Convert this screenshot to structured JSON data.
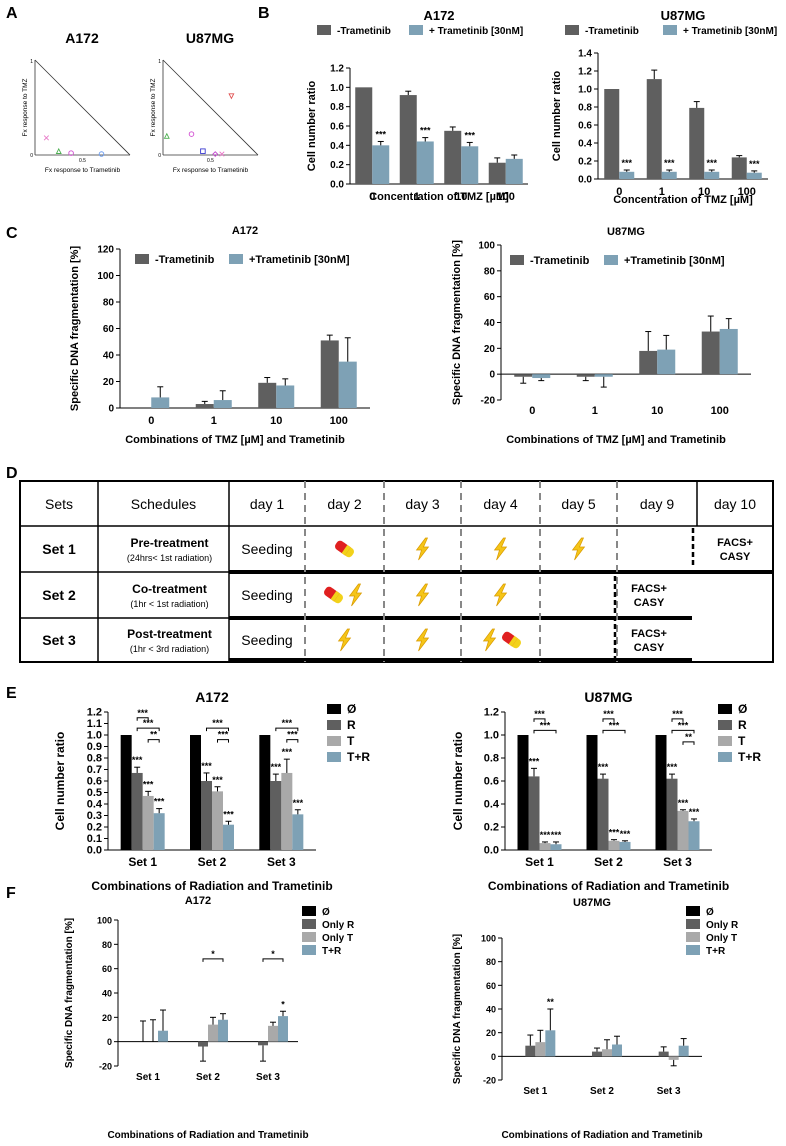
{
  "panel_letters": {
    "a": "A",
    "b": "B",
    "c": "C",
    "d": "D",
    "e": "E",
    "f": "F"
  },
  "colors": {
    "dark": "#5f5f5f",
    "blue": "#7ea1b5",
    "black": "#000000",
    "light": "#a9a9a9",
    "frame": "#000000"
  },
  "panel_a": {
    "plots": [
      {
        "title": "A172",
        "ylabel": "Fx response to TMZ",
        "xlabel": "Fx response to Trametinib",
        "tick_one": "1",
        "tick_zero": "0",
        "tick_half": "0.5",
        "markers": [
          {
            "shape": "x",
            "color": "#e879c8",
            "fx": 0.12,
            "fy": 0.18
          },
          {
            "shape": "tri",
            "color": "#4caf50",
            "fx": 0.25,
            "fy": 0.04
          },
          {
            "shape": "circ",
            "color": "#d14cd1",
            "fx": 0.38,
            "fy": 0.02
          },
          {
            "shape": "circ",
            "color": "#6a9cf0",
            "fx": 0.7,
            "fy": 0.01
          }
        ]
      },
      {
        "title": "U87MG",
        "ylabel": "Fx response to TMZ",
        "xlabel": "Fx response to Trametinib",
        "tick_one": "1",
        "tick_zero": "0",
        "tick_half": "0.5",
        "markers": [
          {
            "shape": "tri-down",
            "color": "#e05050",
            "fx": 0.72,
            "fy": 0.62
          },
          {
            "shape": "circ",
            "color": "#d14cd1",
            "fx": 0.3,
            "fy": 0.22
          },
          {
            "shape": "tri",
            "color": "#4caf50",
            "fx": 0.04,
            "fy": 0.2
          },
          {
            "shape": "sq",
            "color": "#3a3ad0",
            "fx": 0.42,
            "fy": 0.04
          },
          {
            "shape": "diamond",
            "color": "#c44bd1",
            "fx": 0.55,
            "fy": 0.01
          },
          {
            "shape": "x",
            "color": "#e879c8",
            "fx": 0.62,
            "fy": 0.01
          }
        ]
      }
    ]
  },
  "chart_data": [
    {
      "id": "B-A172",
      "type": "bar",
      "title": "A172",
      "ylabel": "Cell number ratio",
      "xlabel": "Concentration of TMZ [µM]",
      "categories": [
        "0",
        "1",
        "10",
        "100"
      ],
      "ylim": [
        0,
        1.2
      ],
      "yticks": [
        "0.0",
        "0.2",
        "0.4",
        "0.6",
        "0.8",
        "1.0",
        "1.2"
      ],
      "series": [
        {
          "name": "-Trametinib",
          "values": [
            1.0,
            0.92,
            0.55,
            0.22
          ],
          "errors": [
            0,
            0.04,
            0.04,
            0.05
          ],
          "sig": [
            "",
            "",
            "",
            ""
          ]
        },
        {
          "name": "+ Trametinib [30nM]",
          "values": [
            0.4,
            0.44,
            0.39,
            0.26
          ],
          "errors": [
            0.04,
            0.04,
            0.04,
            0.04
          ],
          "sig": [
            "***",
            "***",
            "***",
            ""
          ]
        }
      ]
    },
    {
      "id": "B-U87MG",
      "type": "bar",
      "title": "U87MG",
      "ylabel": "Cell number ratio",
      "xlabel": "Concentration of TMZ [µM]",
      "categories": [
        "0",
        "1",
        "10",
        "100"
      ],
      "ylim": [
        0,
        1.4
      ],
      "yticks": [
        "0.0",
        "0.2",
        "0.4",
        "0.6",
        "0.8",
        "1.0",
        "1.2",
        "1.4"
      ],
      "series": [
        {
          "name": "-Trametinib",
          "values": [
            1.0,
            1.11,
            0.79,
            0.24
          ],
          "errors": [
            0,
            0.1,
            0.07,
            0.02
          ],
          "sig": [
            "",
            "",
            "",
            ""
          ]
        },
        {
          "name": "+ Trametinib [30nM]",
          "values": [
            0.08,
            0.08,
            0.08,
            0.07
          ],
          "errors": [
            0.02,
            0.02,
            0.02,
            0.02
          ],
          "sig": [
            "***",
            "***",
            "***",
            "***"
          ]
        }
      ]
    },
    {
      "id": "C-A172",
      "type": "bar",
      "title": "A172",
      "ylabel": "Specific DNA fragmentation [%]",
      "xlabel": "Combinations of TMZ [µM] and Trametinib",
      "categories": [
        "0",
        "1",
        "10",
        "100"
      ],
      "ylim": [
        0,
        120
      ],
      "yticks": [
        "0",
        "20",
        "40",
        "60",
        "80",
        "100",
        "120"
      ],
      "series": [
        {
          "name": "-Trametinib",
          "values": [
            0,
            3,
            19,
            51
          ],
          "errors": [
            0,
            2,
            4,
            4
          ],
          "sig": [
            "",
            "",
            "",
            ""
          ]
        },
        {
          "name": "+Trametinib [30nM]",
          "values": [
            8,
            6,
            17,
            35
          ],
          "errors": [
            8,
            7,
            5,
            18
          ],
          "sig": [
            "",
            "",
            "",
            ""
          ]
        }
      ]
    },
    {
      "id": "C-U87MG",
      "type": "bar",
      "title": "U87MG",
      "ylabel": "Specific DNA fragmentation [%]",
      "xlabel": "Combinations of TMZ [µM] and Trametinib",
      "categories": [
        "0",
        "1",
        "10",
        "100"
      ],
      "ylim": [
        -20,
        100
      ],
      "yticks": [
        "-20",
        "0",
        "20",
        "40",
        "60",
        "80",
        "100"
      ],
      "series": [
        {
          "name": "-Trametinib",
          "values": [
            -2,
            -2,
            18,
            33
          ],
          "errors": [
            5,
            3,
            15,
            12
          ],
          "sig": [
            "",
            "",
            "",
            ""
          ]
        },
        {
          "name": "+Trametinib [30nM]",
          "values": [
            -3,
            -2,
            19,
            35
          ],
          "errors": [
            2,
            8,
            11,
            8
          ],
          "sig": [
            "",
            "",
            "",
            ""
          ]
        }
      ]
    },
    {
      "id": "E-A172",
      "type": "bar",
      "title": "A172",
      "ylabel": "Cell number ratio",
      "xlabel": "Combinations of Radiation and Trametinib",
      "categories": [
        "Set 1",
        "Set 2",
        "Set 3"
      ],
      "ylim": [
        0,
        1.2
      ],
      "yticks": [
        "0.0",
        "0.1",
        "0.2",
        "0.3",
        "0.4",
        "0.5",
        "0.6",
        "0.7",
        "0.8",
        "0.9",
        "1.0",
        "1.1",
        "1.2"
      ],
      "series": [
        {
          "name": "Ø",
          "values": [
            1.0,
            1.0,
            1.0
          ],
          "errors": [
            0,
            0,
            0
          ],
          "sig": [
            "",
            "",
            ""
          ]
        },
        {
          "name": "R",
          "values": [
            0.67,
            0.6,
            0.6
          ],
          "errors": [
            0.05,
            0.07,
            0.06
          ],
          "sig": [
            "***",
            "***",
            "***"
          ]
        },
        {
          "name": "T",
          "values": [
            0.47,
            0.51,
            0.67
          ],
          "errors": [
            0.04,
            0.04,
            0.12
          ],
          "sig": [
            "***",
            "***",
            "***"
          ]
        },
        {
          "name": "T+R",
          "values": [
            0.32,
            0.22,
            0.31
          ],
          "errors": [
            0.04,
            0.03,
            0.04
          ],
          "sig": [
            "***",
            "***",
            "***"
          ]
        }
      ],
      "brackets": [
        {
          "group": 0,
          "from": 1,
          "to": 2,
          "level": 1.15,
          "label": "***"
        },
        {
          "group": 0,
          "from": 1,
          "to": 3,
          "level": 1.06,
          "label": "***"
        },
        {
          "group": 0,
          "from": 2,
          "to": 3,
          "level": 0.96,
          "label": "**"
        },
        {
          "group": 1,
          "from": 1,
          "to": 3,
          "level": 1.06,
          "label": "***"
        },
        {
          "group": 1,
          "from": 2,
          "to": 3,
          "level": 0.96,
          "label": "***"
        },
        {
          "group": 2,
          "from": 1,
          "to": 3,
          "level": 1.06,
          "label": "***"
        },
        {
          "group": 2,
          "from": 2,
          "to": 3,
          "level": 0.96,
          "label": "***"
        }
      ]
    },
    {
      "id": "E-U87MG",
      "type": "bar",
      "title": "U87MG",
      "ylabel": "Cell number ratio",
      "xlabel": "Combinations of Radiation and Trametinib",
      "categories": [
        "Set 1",
        "Set 2",
        "Set 3"
      ],
      "ylim": [
        0,
        1.2
      ],
      "yticks": [
        "0.0",
        "0.2",
        "0.4",
        "0.6",
        "0.8",
        "1.0",
        "1.2"
      ],
      "series": [
        {
          "name": "Ø",
          "values": [
            1.0,
            1.0,
            1.0
          ],
          "errors": [
            0,
            0,
            0
          ],
          "sig": [
            "",
            "",
            ""
          ]
        },
        {
          "name": "R",
          "values": [
            0.64,
            0.62,
            0.62
          ],
          "errors": [
            0.07,
            0.04,
            0.04
          ],
          "sig": [
            "***",
            "***",
            "***"
          ]
        },
        {
          "name": "T",
          "values": [
            0.06,
            0.08,
            0.34
          ],
          "errors": [
            0.01,
            0.01,
            0.01
          ],
          "sig": [
            "***",
            "***",
            "***"
          ]
        },
        {
          "name": "T+R",
          "values": [
            0.05,
            0.07,
            0.25
          ],
          "errors": [
            0.02,
            0.01,
            0.02
          ],
          "sig": [
            "***",
            "***",
            "***"
          ]
        }
      ],
      "brackets": [
        {
          "group": 0,
          "from": 1,
          "to": 2,
          "level": 1.14,
          "label": "***"
        },
        {
          "group": 0,
          "from": 1,
          "to": 3,
          "level": 1.04,
          "label": "***"
        },
        {
          "group": 1,
          "from": 1,
          "to": 2,
          "level": 1.14,
          "label": "***"
        },
        {
          "group": 1,
          "from": 1,
          "to": 3,
          "level": 1.04,
          "label": "***"
        },
        {
          "group": 2,
          "from": 1,
          "to": 2,
          "level": 1.14,
          "label": "***"
        },
        {
          "group": 2,
          "from": 1,
          "to": 3,
          "level": 1.04,
          "label": "***"
        },
        {
          "group": 2,
          "from": 2,
          "to": 3,
          "level": 0.94,
          "label": "**"
        }
      ]
    },
    {
      "id": "F-A172",
      "type": "bar",
      "title": "A172",
      "ylabel": "Specific DNA fragmentation [%]",
      "xlabel": "Combinations of Radiation and Trametinib",
      "categories": [
        "Set 1",
        "Set 2",
        "Set 3"
      ],
      "ylim": [
        -20,
        100
      ],
      "yticks": [
        "-20",
        "0",
        "20",
        "40",
        "60",
        "80",
        "100"
      ],
      "series": [
        {
          "name": "Ø",
          "values": [
            0,
            0,
            0
          ],
          "errors": [
            0,
            0,
            0
          ],
          "sig": [
            "",
            "",
            ""
          ]
        },
        {
          "name": "Only R",
          "values": [
            0,
            -4,
            -3
          ],
          "errors": [
            17,
            12,
            13
          ],
          "sig": [
            "",
            "",
            ""
          ]
        },
        {
          "name": "Only T",
          "values": [
            0,
            14,
            13
          ],
          "errors": [
            18,
            6,
            3
          ],
          "sig": [
            "",
            "",
            ""
          ]
        },
        {
          "name": "T+R",
          "values": [
            9,
            18,
            21
          ],
          "errors": [
            17,
            5,
            4
          ],
          "sig": [
            "",
            "",
            "*"
          ]
        }
      ],
      "brackets": [
        {
          "group": 1,
          "from": 1,
          "to": 3,
          "level": 68,
          "label": "*"
        },
        {
          "group": 2,
          "from": 1,
          "to": 3,
          "level": 68,
          "label": "*"
        }
      ]
    },
    {
      "id": "F-U87MG",
      "type": "bar",
      "title": "U87MG",
      "ylabel": "Specific DNA fragmentation [%]",
      "xlabel": "Combinations of Radiation and Trametinib",
      "categories": [
        "Set 1",
        "Set 2",
        "Set 3"
      ],
      "ylim": [
        -20,
        100
      ],
      "yticks": [
        "-20",
        "0",
        "20",
        "40",
        "60",
        "80",
        "100"
      ],
      "series": [
        {
          "name": "Ø",
          "values": [
            0,
            0,
            0
          ],
          "errors": [
            0,
            0,
            0
          ],
          "sig": [
            "",
            "",
            ""
          ]
        },
        {
          "name": "Only R",
          "values": [
            9,
            4,
            4
          ],
          "errors": [
            9,
            3,
            4
          ],
          "sig": [
            "",
            "",
            ""
          ]
        },
        {
          "name": "Only T",
          "values": [
            12,
            6,
            -3
          ],
          "errors": [
            10,
            8,
            5
          ],
          "sig": [
            "",
            "",
            ""
          ]
        },
        {
          "name": "T+R",
          "values": [
            22,
            10,
            9
          ],
          "errors": [
            18,
            7,
            6
          ],
          "sig": [
            "**",
            "",
            ""
          ]
        }
      ]
    }
  ],
  "schedule_table": {
    "headers": [
      "Sets",
      "Schedules",
      "day 1",
      "day 2",
      "day 3",
      "day 4",
      "day 5",
      "day 9",
      "day 10"
    ],
    "rows": [
      {
        "set": "Set 1",
        "schedule": "Pre-treatment",
        "detail": "(24hrs< 1st radiation)",
        "day1": "Seeding",
        "icons": [
          [
            "pill"
          ],
          [
            "bolt"
          ],
          [
            "bolt"
          ],
          [
            "bolt"
          ]
        ],
        "end_col": 8
      },
      {
        "set": "Set 2",
        "schedule": "Co-treatment",
        "detail": "(1hr < 1st radiation)",
        "day1": "Seeding",
        "icons": [
          [
            "pill",
            "bolt"
          ],
          [
            "bolt"
          ],
          [
            "bolt"
          ],
          []
        ],
        "end_col": 7
      },
      {
        "set": "Set 3",
        "schedule": "Post-treatment",
        "detail": "(1hr < 3rd radiation)",
        "day1": "Seeding",
        "icons": [
          [
            "bolt"
          ],
          [
            "bolt"
          ],
          [
            "bolt",
            "pill"
          ],
          []
        ],
        "end_col": 7
      }
    ],
    "end_label_line1": "FACS+",
    "end_label_line2": "CASY",
    "icon_names": {
      "pill": "pill-icon",
      "bolt": "lightning-icon"
    }
  }
}
